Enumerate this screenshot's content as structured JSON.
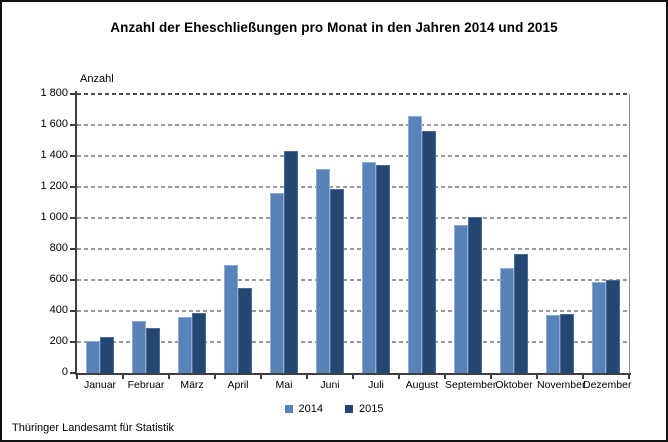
{
  "footer": "Thüringer Landesamt für Statistik",
  "chart_data": {
    "type": "bar",
    "title": "Anzahl der Eheschließungen pro Monat in den Jahren 2014 und 2015",
    "ylabel": "Anzahl",
    "xlabel": "",
    "categories": [
      "Januar",
      "Februar",
      "März",
      "April",
      "Mai",
      "Juni",
      "Juli",
      "August",
      "September",
      "Oktober",
      "November",
      "Dezember"
    ],
    "series": [
      {
        "name": "2014",
        "color": "#5882B8",
        "edge_color": "#8FACD2",
        "values": [
          205,
          335,
          360,
          695,
          1160,
          1315,
          1360,
          1655,
          955,
          680,
          375,
          590
        ]
      },
      {
        "name": "2015",
        "color": "#234770",
        "edge_color": "#4A6B99",
        "values": [
          230,
          290,
          385,
          550,
          1430,
          1190,
          1340,
          1560,
          1005,
          770,
          380,
          600
        ]
      }
    ],
    "ylim": [
      0,
      1800
    ],
    "ytick_step": 200,
    "ytick_labels": [
      "0",
      "200",
      "400",
      "600",
      "800",
      "1 000",
      "1 200",
      "1 400",
      "1 600",
      "1 800"
    ],
    "grid": "horizontal-dashed",
    "legend_position": "bottom-center",
    "colors": {
      "grid": "#9a9a9a",
      "grid_top": "#4d4d4d",
      "axis": "#3f3f3f",
      "text": "#000000"
    }
  }
}
